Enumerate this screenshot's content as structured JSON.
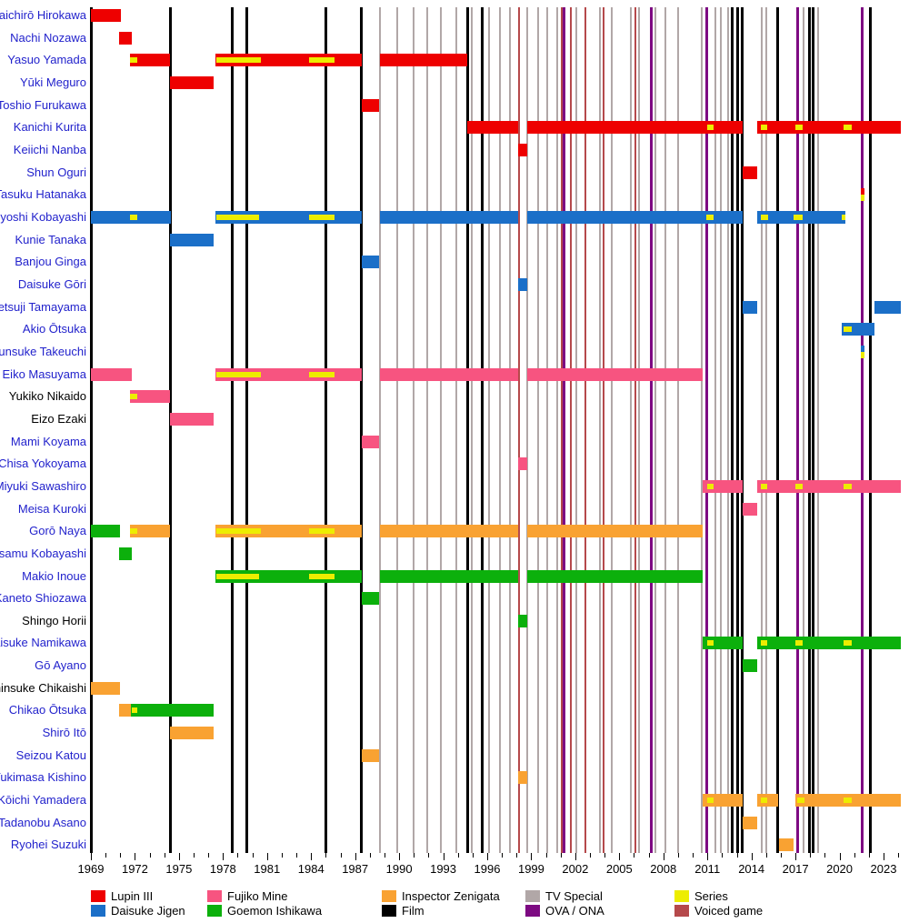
{
  "chart_data": {
    "type": "timeline",
    "title": "",
    "x_axis": {
      "start": 1969,
      "end": 2024.2,
      "minor_tick_interval": 1,
      "major_tick_interval": 3,
      "tick_labels": [
        "1969",
        "1972",
        "1975",
        "1978",
        "1981",
        "1984",
        "1987",
        "1990",
        "1993",
        "1996",
        "1999",
        "2002",
        "2005",
        "2008",
        "2011",
        "2014",
        "2017",
        "2020",
        "2023"
      ]
    },
    "colors": {
      "lupin": "#ee0000",
      "jigen": "#1b6fc8",
      "fujiko": "#f75480",
      "goemon": "#0cb00c",
      "zenigata": "#f9a232",
      "film": "#000000",
      "tv_special": "#b1a7a7",
      "ova_ona": "#7d0a82",
      "series": "#eded00",
      "voiced_game": "#b5494b",
      "name_link": "#2222cc",
      "name_plain": "#000000"
    },
    "event_lines": [
      {
        "type": "film",
        "years": [
          1974.39,
          1978.66,
          1979.65,
          1984.98,
          1987.45,
          1994.64,
          1995.63,
          2012.72,
          2013.09,
          2013.34,
          2015.81,
          2017.98,
          2018.23,
          2022.13
        ]
      },
      {
        "type": "tv_special",
        "years": [
          1988.69,
          1989.87,
          1990.98,
          1991.91,
          1992.84,
          1993.89,
          1994.94,
          1996.12,
          1996.86,
          1997.55,
          1998.7,
          1999.47,
          2000.09,
          2000.76,
          2002.07,
          2003.68,
          2004.48,
          2005.78,
          2006.34,
          2007.45,
          2008.13,
          2009.0,
          2010.61,
          2011.54,
          2011.91,
          2012.41,
          2014.7,
          2015.01,
          2017.55,
          2018.54
        ]
      },
      {
        "type": "ova_ona",
        "years": [
          2001.26,
          2007.2,
          2010.98,
          2017.17,
          2021.57
        ]
      },
      {
        "type": "voiced_game",
        "years": [
          1998.17,
          2001.08,
          2001.7,
          2002.69,
          2003.93,
          2006.09
        ]
      }
    ],
    "rows": [
      {
        "name": "Taichirō Hirokawa",
        "link": true,
        "bars": [
          {
            "role": "lupin",
            "start": 1969.0,
            "end": 1971.05
          }
        ]
      },
      {
        "name": "Nachi Nozawa",
        "link": true,
        "bars": [
          {
            "role": "lupin",
            "start": 1970.9,
            "end": 1971.8
          }
        ]
      },
      {
        "name": "Yasuo Yamada",
        "link": true,
        "bars": [
          {
            "role": "lupin",
            "start": 1971.66,
            "end": 1974.39,
            "series": [
              [
                1971.66,
                1972.16
              ]
            ]
          },
          {
            "role": "lupin",
            "start": 1977.48,
            "end": 1987.45,
            "series": [
              [
                1977.55,
                1980.58
              ],
              [
                1983.86,
                1985.6
              ]
            ]
          },
          {
            "role": "lupin",
            "start": 1988.69,
            "end": 1994.64
          }
        ]
      },
      {
        "name": "Yūki Meguro",
        "link": true,
        "bars": [
          {
            "role": "lupin",
            "start": 1974.39,
            "end": 1977.36
          }
        ]
      },
      {
        "name": "Toshio Furukawa",
        "link": true,
        "bars": [
          {
            "role": "lupin",
            "start": 1987.45,
            "end": 1988.63
          }
        ]
      },
      {
        "name": "Kanichi Kurita",
        "link": true,
        "bars": [
          {
            "role": "lupin",
            "start": 1994.64,
            "end": 1998.11
          },
          {
            "role": "lupin",
            "start": 1998.73,
            "end": 2013.4,
            "series": [
              [
                2010.98,
                2011.42
              ]
            ]
          },
          {
            "role": "lupin",
            "start": 2014.39,
            "end": 2024.17,
            "series": [
              [
                2014.64,
                2015.07
              ],
              [
                2016.99,
                2017.48
              ],
              [
                2020.27,
                2020.83
              ]
            ]
          }
        ]
      },
      {
        "name": "Keiichi Nanba",
        "link": true,
        "bars": [
          {
            "role": "lupin",
            "start": 1998.11,
            "end": 1998.73
          }
        ]
      },
      {
        "name": "Shun Oguri",
        "link": true,
        "bars": [
          {
            "role": "lupin",
            "start": 2013.4,
            "end": 2014.39
          }
        ]
      },
      {
        "name": "Tasuku Hatanaka",
        "link": true,
        "bars": [
          {
            "role": "lupin",
            "start": 2021.45,
            "end": 2021.72,
            "series_half": true
          }
        ]
      },
      {
        "name": "Kiyoshi Kobayashi",
        "link": true,
        "bars": [
          {
            "role": "jigen",
            "start": 1969.0,
            "end": 1974.45,
            "series": [
              [
                1971.66,
                1972.16
              ]
            ]
          },
          {
            "role": "jigen",
            "start": 1977.48,
            "end": 1987.45,
            "series": [
              [
                1977.55,
                1980.46
              ],
              [
                1983.86,
                1985.6
              ]
            ]
          },
          {
            "role": "jigen",
            "start": 1988.69,
            "end": 1998.11
          },
          {
            "role": "jigen",
            "start": 1998.73,
            "end": 2013.4,
            "series": [
              [
                2010.92,
                2011.42
              ]
            ]
          },
          {
            "role": "jigen",
            "start": 2014.39,
            "end": 2020.4,
            "series": [
              [
                2014.64,
                2015.13
              ],
              [
                2016.86,
                2017.48
              ],
              [
                2020.15,
                2020.4
              ]
            ]
          }
        ]
      },
      {
        "name": "Kunie Tanaka",
        "link": true,
        "bars": [
          {
            "role": "jigen",
            "start": 1974.39,
            "end": 1977.36
          }
        ]
      },
      {
        "name": "Banjou Ginga",
        "link": true,
        "bars": [
          {
            "role": "jigen",
            "start": 1987.45,
            "end": 1988.63
          }
        ]
      },
      {
        "name": "Daisuke Gōri",
        "link": true,
        "bars": [
          {
            "role": "jigen",
            "start": 1998.11,
            "end": 1998.73
          }
        ]
      },
      {
        "name": "Tetsuji Tamayama",
        "link": true,
        "bars": [
          {
            "role": "jigen",
            "start": 2013.4,
            "end": 2014.39
          },
          {
            "role": "jigen",
            "start": 2022.38,
            "end": 2024.17
          }
        ]
      },
      {
        "name": "Akio Ōtsuka",
        "link": true,
        "bars": [
          {
            "role": "jigen",
            "start": 2020.15,
            "end": 2022.38,
            "series": [
              [
                2020.27,
                2020.83
              ]
            ]
          }
        ]
      },
      {
        "name": "Shunsuke Takeuchi",
        "link": true,
        "bars": [
          {
            "role": "jigen",
            "start": 2021.45,
            "end": 2021.72,
            "series_half": true
          }
        ]
      },
      {
        "name": "Eiko Masuyama",
        "link": true,
        "bars": [
          {
            "role": "fujiko",
            "start": 1969.0,
            "end": 1971.79
          },
          {
            "role": "fujiko",
            "start": 1977.48,
            "end": 1987.45,
            "series": [
              [
                1977.55,
                1980.58
              ],
              [
                1983.86,
                1985.6
              ]
            ]
          },
          {
            "role": "fujiko",
            "start": 1988.69,
            "end": 1998.11
          },
          {
            "role": "fujiko",
            "start": 1998.73,
            "end": 2010.67
          }
        ]
      },
      {
        "name": "Yukiko Nikaido",
        "link": false,
        "bars": [
          {
            "role": "fujiko",
            "start": 1971.66,
            "end": 1974.39,
            "series": [
              [
                1971.66,
                1972.16
              ]
            ]
          }
        ]
      },
      {
        "name": "Eizo Ezaki",
        "link": false,
        "bars": [
          {
            "role": "fujiko",
            "start": 1974.39,
            "end": 1977.36
          }
        ]
      },
      {
        "name": "Mami Koyama",
        "link": true,
        "bars": [
          {
            "role": "fujiko",
            "start": 1987.45,
            "end": 1988.63
          }
        ]
      },
      {
        "name": "Chisa Yokoyama",
        "link": true,
        "bars": [
          {
            "role": "fujiko",
            "start": 1998.11,
            "end": 1998.73
          }
        ]
      },
      {
        "name": "Miyuki Sawashiro",
        "link": true,
        "bars": [
          {
            "role": "fujiko",
            "start": 2010.67,
            "end": 2013.4,
            "series": [
              [
                2010.98,
                2011.42
              ]
            ]
          },
          {
            "role": "fujiko",
            "start": 2014.39,
            "end": 2024.17,
            "series": [
              [
                2014.64,
                2015.07
              ],
              [
                2016.99,
                2017.48
              ],
              [
                2020.27,
                2020.83
              ]
            ]
          }
        ]
      },
      {
        "name": "Meisa Kuroki",
        "link": true,
        "bars": [
          {
            "role": "fujiko",
            "start": 2013.4,
            "end": 2014.39
          }
        ]
      },
      {
        "name": "Gorō Naya",
        "link": true,
        "bars": [
          {
            "role": "goemon",
            "start": 1969.0,
            "end": 1971.0
          },
          {
            "role": "zenigata",
            "start": 1971.66,
            "end": 1974.39,
            "series": [
              [
                1971.66,
                1972.16
              ]
            ]
          },
          {
            "role": "zenigata",
            "start": 1977.48,
            "end": 1987.45,
            "series": [
              [
                1977.55,
                1980.58
              ],
              [
                1983.86,
                1985.6
              ]
            ]
          },
          {
            "role": "zenigata",
            "start": 1988.69,
            "end": 1998.11
          },
          {
            "role": "zenigata",
            "start": 1998.73,
            "end": 2010.67
          }
        ]
      },
      {
        "name": "Osamu Kobayashi",
        "link": true,
        "bars": [
          {
            "role": "goemon",
            "start": 1970.9,
            "end": 1971.8
          }
        ]
      },
      {
        "name": "Makio Inoue",
        "link": true,
        "bars": [
          {
            "role": "goemon",
            "start": 1977.48,
            "end": 1987.45,
            "series": [
              [
                1977.55,
                1980.46
              ],
              [
                1983.86,
                1985.6
              ]
            ]
          },
          {
            "role": "goemon",
            "start": 1988.69,
            "end": 1998.11
          },
          {
            "role": "goemon",
            "start": 1998.73,
            "end": 2010.67
          }
        ]
      },
      {
        "name": "Kaneto Shiozawa",
        "link": true,
        "bars": [
          {
            "role": "goemon",
            "start": 1987.45,
            "end": 1988.63
          }
        ]
      },
      {
        "name": "Shingo Horii",
        "link": false,
        "bars": [
          {
            "role": "goemon",
            "start": 1998.11,
            "end": 1998.73
          }
        ]
      },
      {
        "name": "Daisuke Namikawa",
        "link": true,
        "bars": [
          {
            "role": "goemon",
            "start": 2010.67,
            "end": 2013.4,
            "series": [
              [
                2010.98,
                2011.42
              ]
            ]
          },
          {
            "role": "goemon",
            "start": 2014.39,
            "end": 2024.17,
            "series": [
              [
                2014.64,
                2015.07
              ],
              [
                2016.99,
                2017.48
              ],
              [
                2020.27,
                2020.83
              ]
            ]
          }
        ]
      },
      {
        "name": "Gō Ayano",
        "link": true,
        "bars": [
          {
            "role": "goemon",
            "start": 2013.4,
            "end": 2014.39
          }
        ]
      },
      {
        "name": "Shinsuke Chikaishi",
        "link": false,
        "bars": [
          {
            "role": "zenigata",
            "start": 1969.0,
            "end": 1971.0
          }
        ]
      },
      {
        "name": "Chikao Ōtsuka",
        "link": true,
        "bars": [
          {
            "role": "zenigata",
            "start": 1970.9,
            "end": 1971.72
          },
          {
            "role": "goemon",
            "start": 1971.72,
            "end": 1977.36,
            "series": [
              [
                1971.79,
                1972.16
              ]
            ]
          }
        ]
      },
      {
        "name": "Shirō Itō",
        "link": true,
        "bars": [
          {
            "role": "zenigata",
            "start": 1974.39,
            "end": 1977.36
          }
        ]
      },
      {
        "name": "Seizou Katou",
        "link": true,
        "bars": [
          {
            "role": "zenigata",
            "start": 1987.45,
            "end": 1988.63
          }
        ]
      },
      {
        "name": "Yukimasa Kishino",
        "link": true,
        "bars": [
          {
            "role": "zenigata",
            "start": 1998.11,
            "end": 1998.73
          }
        ]
      },
      {
        "name": "Kōichi Yamadera",
        "link": true,
        "bars": [
          {
            "role": "zenigata",
            "start": 2010.67,
            "end": 2013.4,
            "series": [
              [
                2010.98,
                2011.42
              ]
            ]
          },
          {
            "role": "zenigata",
            "start": 2014.39,
            "end": 2015.81,
            "series": [
              [
                2014.64,
                2015.07
              ]
            ]
          },
          {
            "role": "zenigata",
            "start": 2016.99,
            "end": 2024.17,
            "series": [
              [
                2017.11,
                2017.61
              ],
              [
                2020.27,
                2020.83
              ]
            ]
          }
        ]
      },
      {
        "name": "Tadanobu Asano",
        "link": true,
        "bars": [
          {
            "role": "zenigata",
            "start": 2013.4,
            "end": 2014.39
          }
        ]
      },
      {
        "name": "Ryohei Suzuki",
        "link": true,
        "bars": [
          {
            "role": "zenigata",
            "start": 2015.87,
            "end": 2016.86
          }
        ]
      }
    ]
  },
  "legend": {
    "columns": [
      {
        "items": [
          {
            "label": "Lupin III",
            "color": "lupin"
          },
          {
            "label": "Daisuke Jigen",
            "color": "jigen"
          }
        ]
      },
      {
        "items": [
          {
            "label": "Fujiko Mine",
            "color": "fujiko"
          },
          {
            "label": "Goemon Ishikawa",
            "color": "goemon"
          }
        ]
      },
      {
        "items": [
          {
            "label": "Inspector Zenigata",
            "color": "zenigata"
          },
          {
            "label": "Film",
            "color": "film"
          }
        ]
      },
      {
        "items": [
          {
            "label": "TV Special",
            "color": "tv_special"
          },
          {
            "label": "OVA / ONA",
            "color": "ova_ona"
          }
        ]
      },
      {
        "items": [
          {
            "label": "Series",
            "color": "series"
          },
          {
            "label": "Voiced game",
            "color": "voiced_game"
          }
        ]
      }
    ]
  }
}
